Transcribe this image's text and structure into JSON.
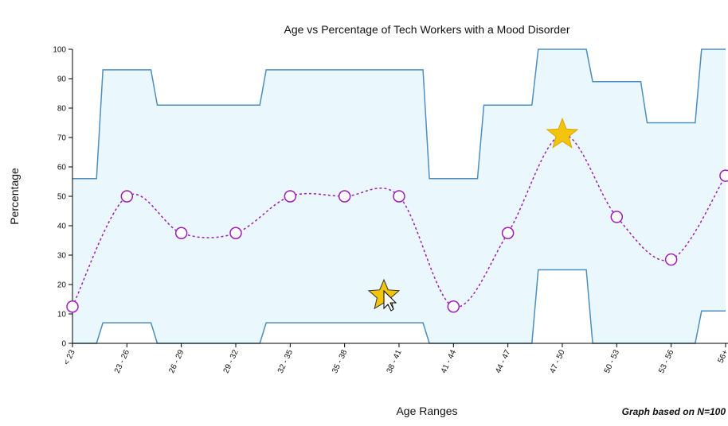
{
  "chart_data": {
    "type": "line",
    "title": "Age vs Percentage of Tech Workers with a Mood Disorder",
    "xlabel": "Age Ranges",
    "ylabel": "Percentage",
    "note": "Graph based on N=100",
    "categories": [
      "< 23",
      "23 - 26",
      "26 - 29",
      "29 - 32",
      "32 - 35",
      "35 - 38",
      "38 - 41",
      "41 - 44",
      "44 - 47",
      "47 - 50",
      "50 - 53",
      "53 - 56",
      "56+"
    ],
    "ylim": [
      0,
      100
    ],
    "yticks": [
      0,
      10,
      20,
      30,
      40,
      50,
      60,
      70,
      80,
      90,
      100
    ],
    "series": [
      {
        "values": [
          12.5,
          50,
          37.5,
          37.5,
          50,
          50,
          50,
          12.5,
          37.5,
          71,
          43,
          28.5,
          57
        ]
      }
    ],
    "band_upper": [
      56,
      93,
      81,
      81,
      93,
      93,
      93,
      56,
      81,
      100,
      89,
      75,
      100
    ],
    "band_lower": [
      0,
      7,
      0,
      0,
      7,
      7,
      7,
      0,
      0,
      25,
      0,
      0,
      11
    ],
    "highlight_index": 9,
    "grid": false,
    "colors": {
      "line": "#9b1fb8",
      "band_fill": "#eaf7fc",
      "band_stroke": "#4d8fc1",
      "star_fill": "#f2c40c",
      "star_stroke": "#d9a400"
    }
  }
}
